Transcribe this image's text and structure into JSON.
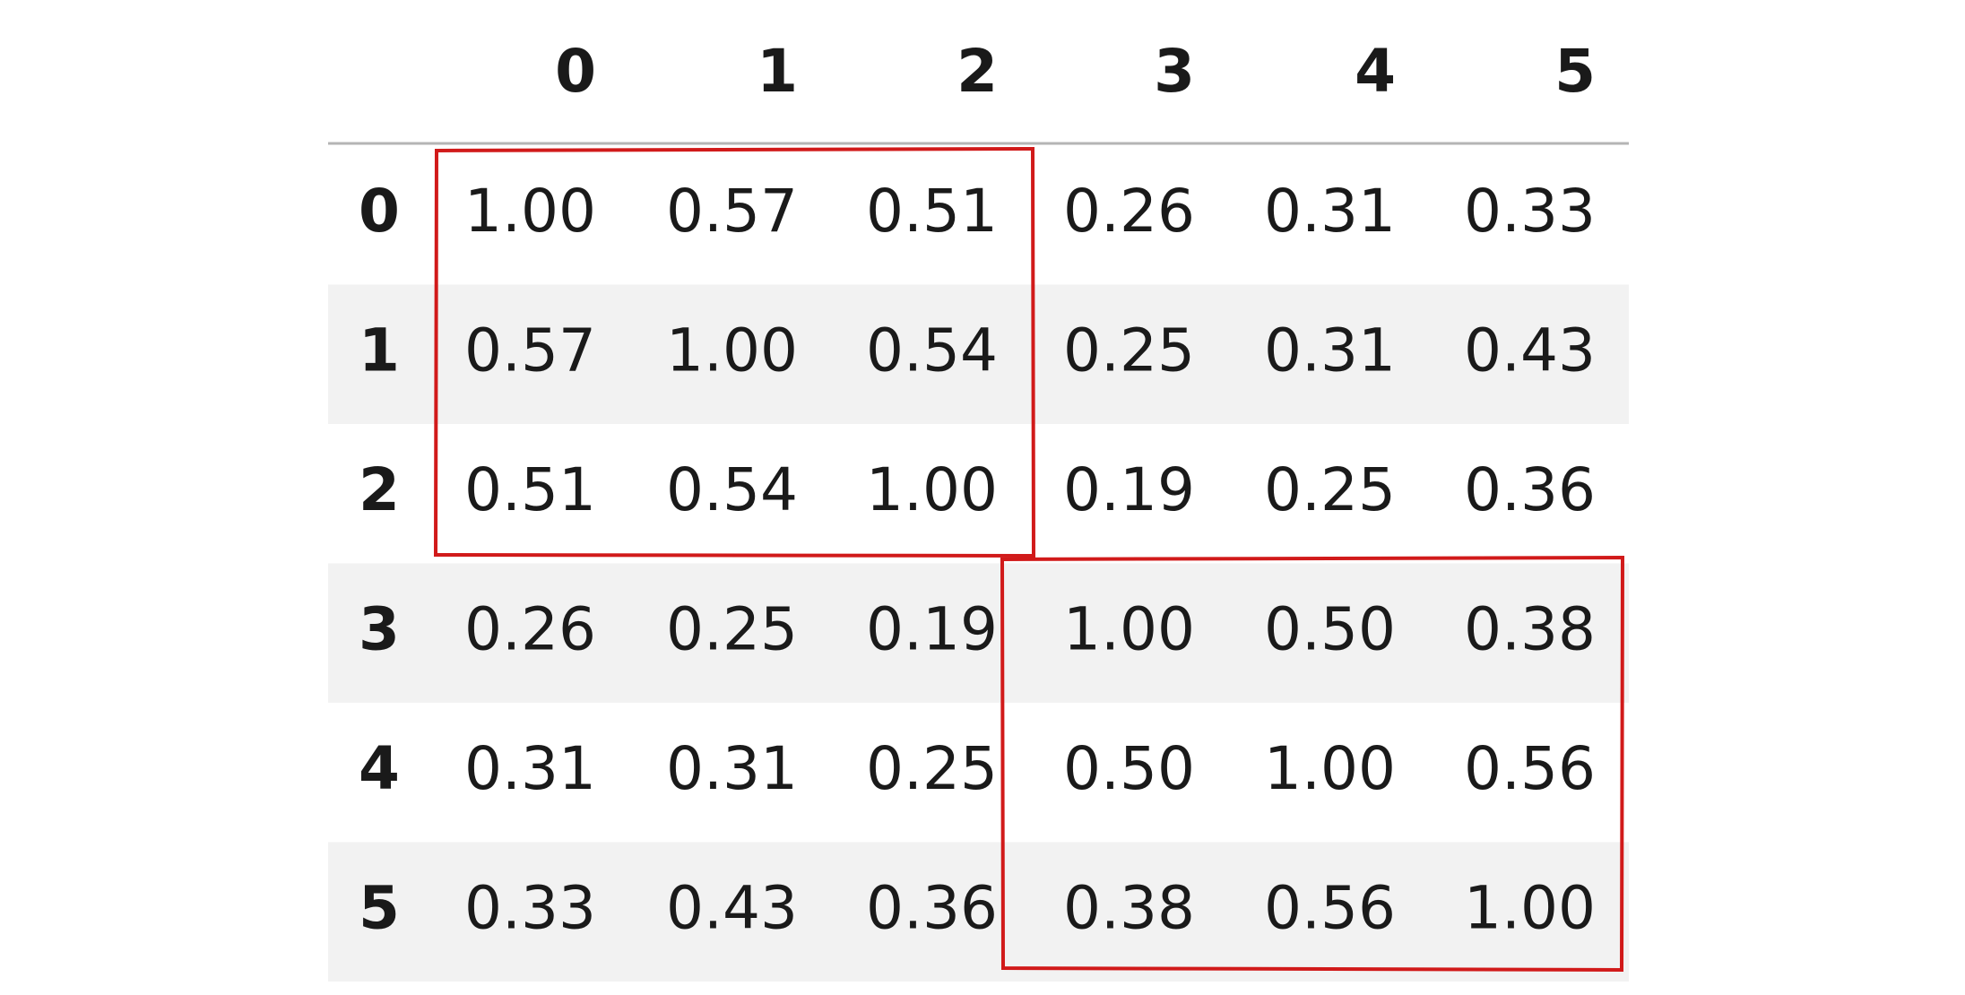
{
  "table": {
    "columns": [
      "0",
      "1",
      "2",
      "3",
      "4",
      "5"
    ],
    "index": [
      "0",
      "1",
      "2",
      "3",
      "4",
      "5"
    ],
    "rows": [
      [
        "1.00",
        "0.57",
        "0.51",
        "0.26",
        "0.31",
        "0.33"
      ],
      [
        "0.57",
        "1.00",
        "0.54",
        "0.25",
        "0.31",
        "0.43"
      ],
      [
        "0.51",
        "0.54",
        "1.00",
        "0.19",
        "0.25",
        "0.36"
      ],
      [
        "0.26",
        "0.25",
        "0.19",
        "1.00",
        "0.50",
        "0.38"
      ],
      [
        "0.31",
        "0.31",
        "0.25",
        "0.50",
        "1.00",
        "0.56"
      ],
      [
        "0.33",
        "0.43",
        "0.36",
        "0.38",
        "0.56",
        "1.00"
      ]
    ]
  }
}
